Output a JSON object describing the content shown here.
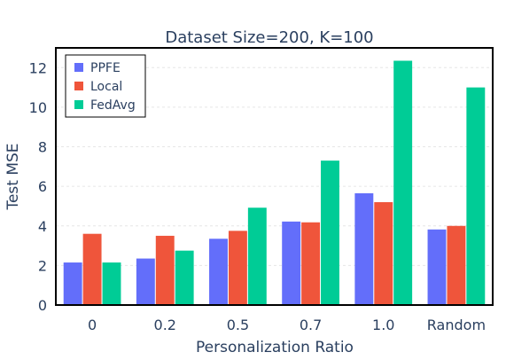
{
  "chart_data": {
    "type": "bar",
    "title": "Dataset Size=200, K=100",
    "xlabel": "Personalization Ratio",
    "ylabel": "Test MSE",
    "categories": [
      "0",
      "0.2",
      "0.5",
      "0.7",
      "1.0",
      "Random"
    ],
    "ylim": [
      0,
      13
    ],
    "yticks": [
      0,
      2,
      4,
      6,
      8,
      10,
      12
    ],
    "grid": true,
    "legend_position": "top-left",
    "series": [
      {
        "name": "PPFE",
        "color": "#636efa",
        "values": [
          2.15,
          2.35,
          3.35,
          4.22,
          5.65,
          3.82
        ]
      },
      {
        "name": "Local",
        "color": "#ef553b",
        "values": [
          3.6,
          3.5,
          3.75,
          4.18,
          5.2,
          4.0
        ]
      },
      {
        "name": "FedAvg",
        "color": "#00cc96",
        "values": [
          2.15,
          2.75,
          4.92,
          7.3,
          12.35,
          11.0
        ]
      }
    ]
  }
}
